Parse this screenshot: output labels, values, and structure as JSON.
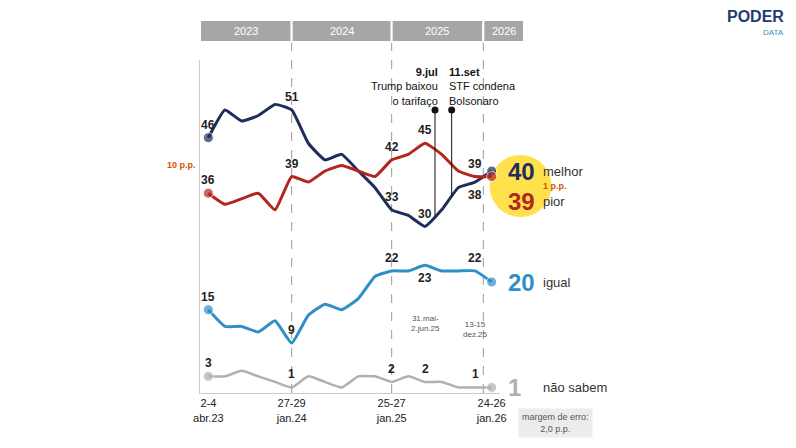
{
  "chart_data": {
    "type": "line",
    "categories": [
      "2-4 abr.23",
      null,
      null,
      null,
      null,
      "27-29 jan.24",
      null,
      null,
      null,
      null,
      null,
      "25-27 jan.25",
      null,
      null,
      null,
      null,
      null,
      "24-26 jan.26"
    ],
    "series": [
      {
        "name": "melhor",
        "color": "#1f2d5c",
        "values": [
          46,
          51,
          49,
          50,
          52,
          51,
          45,
          42,
          43,
          40,
          37,
          33,
          32,
          30,
          33,
          37,
          38,
          40
        ],
        "value_labels": [
          "46",
          null,
          null,
          null,
          null,
          "51",
          null,
          null,
          null,
          null,
          null,
          "33",
          null,
          "30",
          null,
          null,
          "38",
          "40"
        ]
      },
      {
        "name": "pior",
        "color": "#b3261e",
        "values": [
          36,
          34,
          35,
          36,
          33,
          39,
          38,
          40,
          41,
          40,
          39,
          42,
          43,
          45,
          43,
          40,
          39,
          39
        ],
        "value_labels": [
          "36",
          null,
          null,
          null,
          null,
          "39",
          null,
          null,
          null,
          null,
          null,
          "42",
          null,
          "45",
          null,
          null,
          "39",
          "39"
        ]
      },
      {
        "name": "igual",
        "color": "#2f8fc6",
        "values": [
          15,
          12,
          12,
          11,
          13,
          9,
          14,
          16,
          15,
          17,
          21,
          22,
          22,
          23,
          22,
          22,
          22,
          20
        ],
        "value_labels": [
          "15",
          null,
          null,
          null,
          null,
          "9",
          null,
          null,
          null,
          null,
          null,
          "22",
          null,
          "23",
          null,
          null,
          "22",
          "20"
        ]
      },
      {
        "name": "não sabem",
        "color": "#b0b0b0",
        "values": [
          3,
          3,
          4,
          3,
          2,
          1,
          3,
          2,
          1,
          3,
          3,
          2,
          3,
          2,
          2,
          1,
          1,
          1
        ],
        "value_labels": [
          "3",
          null,
          null,
          null,
          null,
          "1",
          null,
          null,
          null,
          null,
          null,
          "2",
          null,
          "2",
          null,
          null,
          "1",
          "1"
        ]
      }
    ],
    "ylim": [
      0,
      60
    ],
    "yticks": [],
    "grid": false,
    "tick_labels": "x",
    "data_labels": true,
    "periods": [
      {
        "label": "2023",
        "start": 0
      },
      {
        "label": "2024",
        "start": 5
      },
      {
        "label": "2025",
        "start": 11
      },
      {
        "label": "2026",
        "start": 16.5
      }
    ],
    "events": [
      {
        "date": "9.jul",
        "text": "Trump baixou o tarifaço",
        "x": 13.6
      },
      {
        "date": "11.set",
        "text": "STF condena Bolsonaro",
        "x": 14.6
      }
    ],
    "notes": [
      {
        "text": "31.mai-2.jun.25",
        "x": 13
      },
      {
        "text": "13-15 dez.25",
        "x": 16
      }
    ],
    "gaps": [
      {
        "text": "10 p.p.",
        "x": 0
      },
      {
        "text": "1 p.p.",
        "x": 17
      }
    ],
    "footnote": "margem de erro: 2,0 p.p.",
    "logo": {
      "text": "PODER",
      "subtext": "DATA"
    }
  }
}
